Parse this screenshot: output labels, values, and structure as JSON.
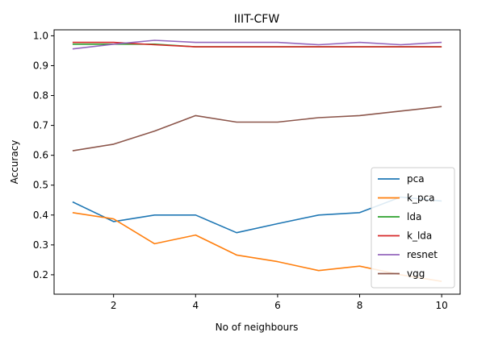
{
  "chart_data": {
    "type": "line",
    "title": "IIIT-CFW",
    "xlabel": "No of neighbours",
    "ylabel": "Accuracy",
    "xlim": [
      0.55,
      10.45
    ],
    "ylim": [
      0.135,
      1.02
    ],
    "xticks": [
      2,
      4,
      6,
      8,
      10
    ],
    "yticks": [
      0.2,
      0.3,
      0.4,
      0.5,
      0.6,
      0.7,
      0.8,
      0.9,
      1.0
    ],
    "ytick_labels": [
      "0.2",
      "0.3",
      "0.4",
      "0.5",
      "0.6",
      "0.7",
      "0.8",
      "0.9",
      "1.0"
    ],
    "x": [
      1,
      2,
      3,
      4,
      5,
      6,
      7,
      8,
      9,
      10
    ],
    "grid": false,
    "legend_position": "lower-right",
    "series": [
      {
        "name": "pca",
        "color": "#1f77b4",
        "values": [
          0.444,
          0.378,
          0.4,
          0.4,
          0.341,
          0.371,
          0.4,
          0.408,
          0.46,
          0.447
        ]
      },
      {
        "name": "k_pca",
        "color": "#ff7f0e",
        "values": [
          0.408,
          0.387,
          0.304,
          0.333,
          0.266,
          0.244,
          0.214,
          0.229,
          0.2,
          0.178
        ]
      },
      {
        "name": "lda",
        "color": "#2ca02c",
        "values": [
          0.972,
          0.972,
          0.972,
          0.963,
          0.963,
          0.963,
          0.963,
          0.963,
          0.963,
          0.963
        ]
      },
      {
        "name": "k_lda",
        "color": "#d62728",
        "values": [
          0.978,
          0.978,
          0.97,
          0.963,
          0.963,
          0.963,
          0.963,
          0.963,
          0.963,
          0.963
        ]
      },
      {
        "name": "resnet",
        "color": "#9467bd",
        "values": [
          0.956,
          0.972,
          0.985,
          0.978,
          0.978,
          0.978,
          0.97,
          0.978,
          0.97,
          0.978
        ]
      },
      {
        "name": "vgg",
        "color": "#8c564b",
        "values": [
          0.615,
          0.637,
          0.681,
          0.733,
          0.711,
          0.711,
          0.726,
          0.733,
          0.748,
          0.763
        ]
      }
    ]
  }
}
